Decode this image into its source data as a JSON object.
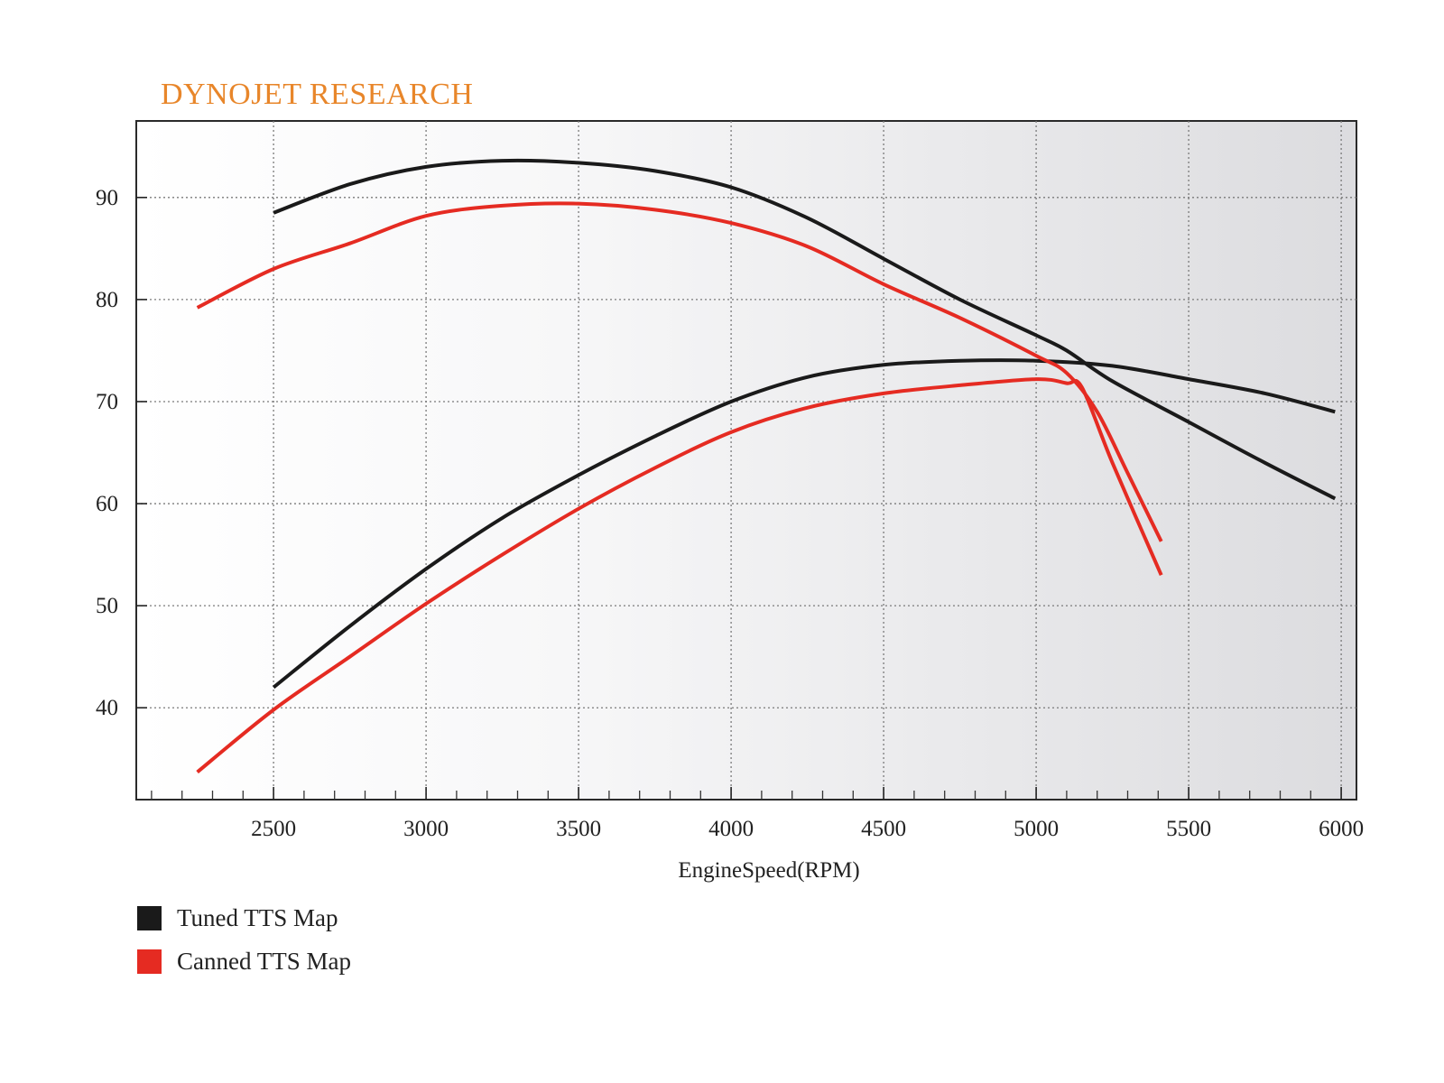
{
  "brand": {
    "text": "DYNOJET RESEARCH",
    "color": "#E8862A"
  },
  "chart_data": {
    "type": "line",
    "title": "",
    "xlabel": "EngineSpeed(RPM)",
    "ylabel": "",
    "xlim": [
      2050,
      6050
    ],
    "ylim": [
      31,
      97.5
    ],
    "x_ticks": [
      2500,
      3000,
      3500,
      4000,
      4500,
      5000,
      5500,
      6000
    ],
    "x_tick_labels": [
      "2500",
      "3000",
      "3500",
      "4000",
      "4500",
      "5000",
      "5500",
      "6000"
    ],
    "y_ticks": [
      40,
      50,
      60,
      70,
      80,
      90
    ],
    "y_tick_labels": [
      "40",
      "50",
      "60",
      "70",
      "80",
      "90"
    ],
    "grid": true,
    "legend_position": "bottom-left",
    "series": [
      {
        "name": "Tuned TTS Map",
        "color": "#1a1a1a",
        "curves": [
          {
            "x": [
              2500,
              2750,
              3000,
              3250,
              3500,
              3750,
              4000,
              4250,
              4500,
              4750,
              5000,
              5100,
              5250,
              5500,
              5750,
              5980
            ],
            "y": [
              88.5,
              91.3,
              93.0,
              93.6,
              93.4,
              92.6,
              91.0,
              88.0,
              84.0,
              80.0,
              76.5,
              75.0,
              72.0,
              68.0,
              64.0,
              60.5
            ]
          },
          {
            "x": [
              2500,
              2750,
              3000,
              3250,
              3500,
              3750,
              4000,
              4250,
              4500,
              4750,
              5000,
              5250,
              5500,
              5750,
              5980
            ],
            "y": [
              42.0,
              48.0,
              53.6,
              58.6,
              62.8,
              66.6,
              70.0,
              72.4,
              73.6,
              74.0,
              74.0,
              73.5,
              72.2,
              70.8,
              69.0
            ]
          }
        ]
      },
      {
        "name": "Canned TTS Map",
        "color": "#e52b22",
        "curves": [
          {
            "x": [
              2250,
              2500,
              2750,
              3000,
              3250,
              3500,
              3750,
              4000,
              4250,
              4500,
              4750,
              5000,
              5100,
              5200,
              5300,
              5410
            ],
            "y": [
              79.2,
              83.0,
              85.5,
              88.2,
              89.2,
              89.4,
              88.8,
              87.5,
              85.2,
              81.5,
              78.2,
              74.5,
              72.8,
              69.0,
              63.0,
              56.3
            ]
          },
          {
            "x": [
              2250,
              2500,
              2750,
              3000,
              3250,
              3500,
              3750,
              4000,
              4250,
              4500,
              4750,
              5000,
              5100,
              5150,
              5250,
              5410
            ],
            "y": [
              33.7,
              39.8,
              45.0,
              50.2,
              55.0,
              59.5,
              63.5,
              67.0,
              69.4,
              70.8,
              71.6,
              72.2,
              71.8,
              71.4,
              64.0,
              53.0
            ]
          }
        ]
      }
    ]
  },
  "legend": {
    "items": [
      {
        "label": "Tuned TTS Map",
        "color": "#1a1a1a"
      },
      {
        "label": "Canned TTS Map",
        "color": "#e52b22"
      }
    ]
  }
}
